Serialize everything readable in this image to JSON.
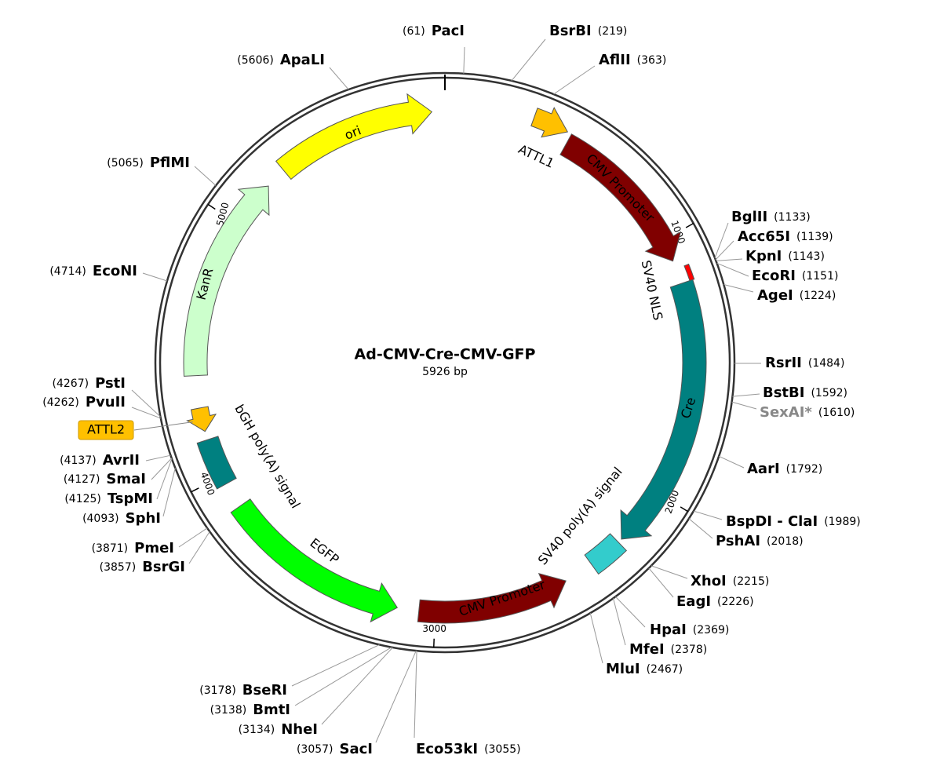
{
  "map": {
    "title": "Ad-CMV-Cre-CMV-GFP",
    "size": "5926 bp",
    "ticks": [
      1000,
      2000,
      3000,
      4000,
      5000
    ],
    "features": [
      {
        "label": "ori"
      },
      {
        "label": "ATTL1"
      },
      {
        "label": "CMV Promoter"
      },
      {
        "label": "SV40 NLS"
      },
      {
        "label": "Cre"
      },
      {
        "label": "SV40 poly(A) signal"
      },
      {
        "label": "CMV Promoter"
      },
      {
        "label": "EGFP"
      },
      {
        "label": "bGH poly(A) signal"
      },
      {
        "label": "ATTL2"
      },
      {
        "label": "KanR"
      }
    ],
    "sites": [
      {
        "name": "PacI",
        "position": "(61)"
      },
      {
        "name": "ApaLI",
        "position": "(5606)"
      },
      {
        "name": "BsrBI",
        "position": "(219)"
      },
      {
        "name": "AflII",
        "position": "(363)"
      },
      {
        "name": "PflMI",
        "position": "(5065)"
      },
      {
        "name": "EcoNI",
        "position": "(4714)"
      },
      {
        "name": "PstI",
        "position": "(4267)"
      },
      {
        "name": "PvuII",
        "position": "(4262)"
      },
      {
        "name": "AvrII",
        "position": "(4137)"
      },
      {
        "name": "SmaI",
        "position": "(4127)"
      },
      {
        "name": "TspMI",
        "position": "(4125)"
      },
      {
        "name": "SphI",
        "position": "(4093)"
      },
      {
        "name": "PmeI",
        "position": "(3871)"
      },
      {
        "name": "BsrGI",
        "position": "(3857)"
      },
      {
        "name": "BseRI",
        "position": "(3178)"
      },
      {
        "name": "BmtI",
        "position": "(3138)"
      },
      {
        "name": "NheI",
        "position": "(3134)"
      },
      {
        "name": "SacI",
        "position": "(3057)"
      },
      {
        "name": "Eco53kI",
        "position": "(3055)"
      },
      {
        "name": "BglII",
        "position": "(1133)"
      },
      {
        "name": "Acc65I",
        "position": "(1139)"
      },
      {
        "name": "KpnI",
        "position": "(1143)"
      },
      {
        "name": "EcoRI",
        "position": "(1151)"
      },
      {
        "name": "AgeI",
        "position": "(1224)"
      },
      {
        "name": "RsrII",
        "position": "(1484)"
      },
      {
        "name": "BstBI",
        "position": "(1592)"
      },
      {
        "name": "SexAI*",
        "position": "(1610)"
      },
      {
        "name": "AarI",
        "position": "(1792)"
      },
      {
        "name": "BspDI - ClaI",
        "position": "(1989)"
      },
      {
        "name": "PshAI",
        "position": "(2018)"
      },
      {
        "name": "XhoI",
        "position": "(2215)"
      },
      {
        "name": "EagI",
        "position": "(2226)"
      },
      {
        "name": "HpaI",
        "position": "(2369)"
      },
      {
        "name": "MfeI",
        "position": "(2378)"
      },
      {
        "name": "MluI",
        "position": "(2467)"
      }
    ]
  }
}
